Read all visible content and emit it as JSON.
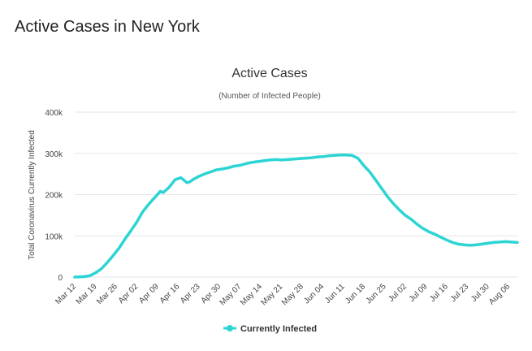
{
  "page": {
    "title": "Active Cases in New York"
  },
  "chart_data": {
    "type": "line",
    "title": "Active Cases",
    "subtitle": "(Number of Infected People)",
    "xlabel": "",
    "ylabel": "Total Coronavirus Currently Infected",
    "ylim": [
      0,
      400000
    ],
    "yticks": [
      0,
      100000,
      200000,
      300000,
      400000
    ],
    "ytick_labels": [
      "0",
      "100k",
      "200k",
      "300k",
      "400k"
    ],
    "xtick_labels": [
      "Mar 12",
      "Mar 19",
      "Mar 26",
      "Apr 02",
      "Apr 09",
      "Apr 16",
      "Apr 23",
      "Apr 30",
      "May 07",
      "May 14",
      "May 21",
      "May 28",
      "Jun 04",
      "Jun 11",
      "Jun 18",
      "Jun 25",
      "Jul 02",
      "Jul 09",
      "Jul 16",
      "Jul 23",
      "Jul 30",
      "Aug 06"
    ],
    "grid": true,
    "legend": "bottom-center",
    "series": [
      {
        "name": "Currently Infected",
        "color": "#2dd4d4",
        "x_days": [
          0,
          3,
          5,
          7,
          9,
          11,
          13,
          15,
          17,
          19,
          21,
          23,
          25,
          27,
          29,
          30,
          32,
          34,
          36,
          38,
          39,
          40,
          42,
          44,
          46,
          48,
          50,
          52,
          54,
          56,
          58,
          60,
          62,
          64,
          66,
          68,
          70,
          72,
          74,
          76,
          78,
          80,
          82,
          84,
          86,
          88,
          90,
          92,
          94,
          96,
          98,
          100,
          102,
          104,
          106,
          108,
          110,
          112,
          114,
          116,
          118,
          120,
          122,
          124,
          126,
          128,
          130,
          132,
          134,
          136,
          138,
          140,
          142,
          144,
          146,
          148,
          150
        ],
        "values": [
          0,
          1000,
          3000,
          10000,
          20000,
          35000,
          52000,
          70000,
          92000,
          112000,
          133000,
          158000,
          176000,
          192000,
          208000,
          205000,
          218000,
          236000,
          241000,
          229000,
          231000,
          236000,
          244000,
          250000,
          255000,
          260000,
          262000,
          265000,
          269000,
          271000,
          275000,
          278000,
          280000,
          282000,
          284000,
          285000,
          284000,
          285000,
          286000,
          287000,
          288000,
          289000,
          291000,
          292000,
          294000,
          295000,
          296000,
          296000,
          295000,
          288000,
          270000,
          255000,
          235000,
          215000,
          195000,
          178000,
          163000,
          150000,
          140000,
          128000,
          118000,
          110000,
          104000,
          97000,
          90000,
          84000,
          80000,
          78000,
          77000,
          78000,
          80000,
          82000,
          84000,
          85000,
          86000,
          85000,
          84000
        ]
      }
    ]
  }
}
